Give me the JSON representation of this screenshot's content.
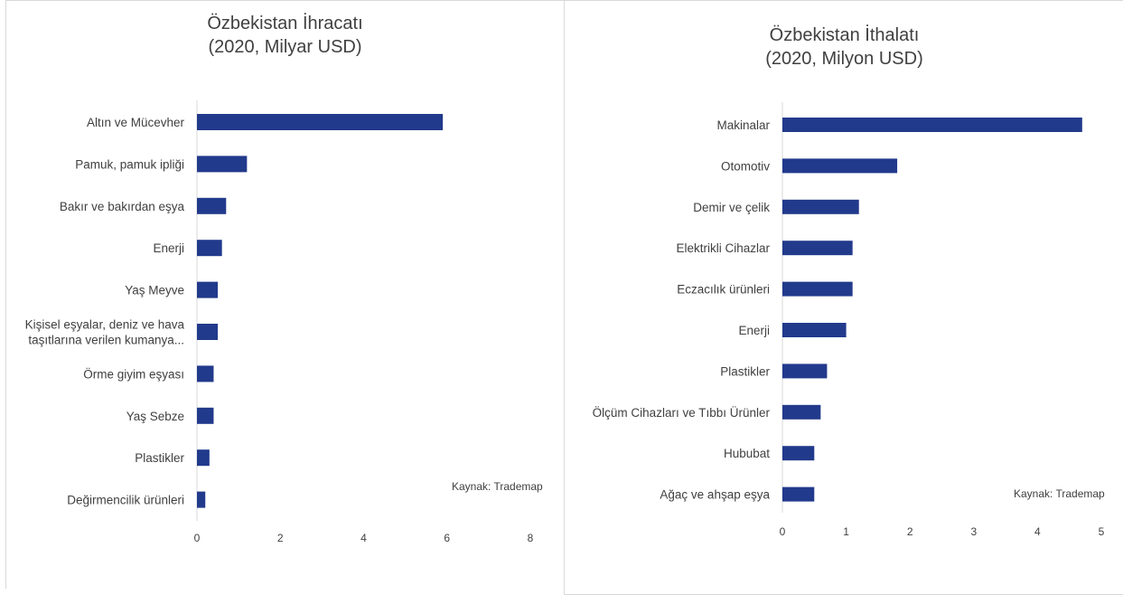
{
  "chart_data": [
    {
      "type": "bar",
      "orientation": "horizontal",
      "title": [
        "Özbekistan İhracatı",
        "(2020, Milyar USD)"
      ],
      "categories": [
        "Altın ve Mücevher",
        "Pamuk, pamuk ipliği",
        "Bakır ve bakırdan eşya",
        "Enerji",
        "Yaş Meyve",
        [
          "Kişisel eşyalar, deniz ve hava",
          "taşıtlarına verilen kumanya..."
        ],
        "Örme giyim eşyası",
        "Yaş Sebze",
        "Plastikler",
        "Değirmencilik ürünleri"
      ],
      "values": [
        5.9,
        1.2,
        0.7,
        0.6,
        0.5,
        0.5,
        0.4,
        0.4,
        0.3,
        0.2
      ],
      "xlim": [
        0,
        8
      ],
      "xticks": [
        0,
        2,
        4,
        6,
        8
      ],
      "bar_color": "#223a8c",
      "grid": false,
      "note": "Kaynak: Trademap"
    },
    {
      "type": "bar",
      "orientation": "horizontal",
      "title": [
        "Özbekistan İthalatı",
        "(2020, Milyon USD)"
      ],
      "categories": [
        "Makinalar",
        "Otomotiv",
        "Demir ve çelik",
        "Elektrikli Cihazlar",
        "Eczacılık ürünleri",
        "Enerji",
        "Plastikler",
        "Ölçüm Cihazları ve Tıbbı Ürünler",
        "Hububat",
        "Ağaç ve ahşap eşya"
      ],
      "values": [
        4.7,
        1.8,
        1.2,
        1.1,
        1.1,
        1.0,
        0.7,
        0.6,
        0.5,
        0.5
      ],
      "xlim": [
        0,
        5
      ],
      "xticks": [
        0,
        1,
        2,
        3,
        4,
        5
      ],
      "bar_color": "#223a8c",
      "grid": false,
      "note": "Kaynak: Trademap"
    }
  ]
}
